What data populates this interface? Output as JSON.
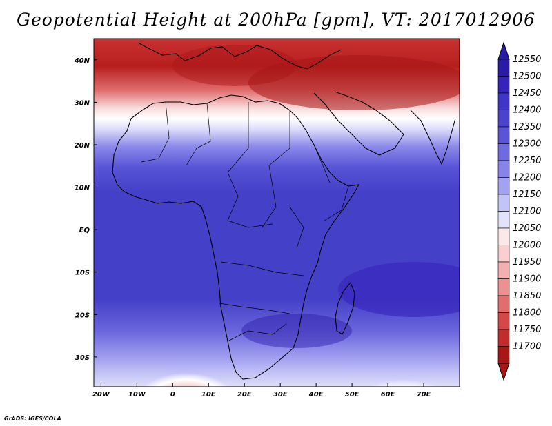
{
  "title": "Geopotential Height at 200hPa [gpm], VT: 2017012906",
  "credit": "GrADS: IGES/COLA",
  "map": {
    "lon_range": [
      -22,
      80
    ],
    "lat_range": [
      -37,
      45
    ],
    "lon_ticks": [
      {
        "value": -20,
        "label": "20W"
      },
      {
        "value": -10,
        "label": "10W"
      },
      {
        "value": 0,
        "label": "0"
      },
      {
        "value": 10,
        "label": "10E"
      },
      {
        "value": 20,
        "label": "20E"
      },
      {
        "value": 30,
        "label": "30E"
      },
      {
        "value": 40,
        "label": "40E"
      },
      {
        "value": 50,
        "label": "50E"
      },
      {
        "value": 60,
        "label": "60E"
      },
      {
        "value": 70,
        "label": "70E"
      }
    ],
    "lat_ticks": [
      {
        "value": 40,
        "label": "40N"
      },
      {
        "value": 30,
        "label": "30N"
      },
      {
        "value": 20,
        "label": "20N"
      },
      {
        "value": 10,
        "label": "10N"
      },
      {
        "value": 0,
        "label": "EQ"
      },
      {
        "value": -10,
        "label": "10S"
      },
      {
        "value": -20,
        "label": "20S"
      },
      {
        "value": -30,
        "label": "30S"
      }
    ]
  },
  "colorbar": {
    "levels": [
      "12550",
      "12500",
      "12450",
      "12400",
      "12350",
      "12300",
      "12250",
      "12200",
      "12150",
      "12100",
      "12050",
      "12000",
      "11950",
      "11900",
      "11850",
      "11800",
      "11750",
      "11700"
    ],
    "colors": [
      "#2a1aa8",
      "#3523bb",
      "#3f35c6",
      "#4a43cc",
      "#5a55d6",
      "#6e6ae0",
      "#8684ea",
      "#a3a2f1",
      "#c2c3f7",
      "#e2e3fb",
      "#fbe9e9",
      "#f9cfcf",
      "#f3b0b0",
      "#ec9090",
      "#e26d6d",
      "#d64848",
      "#c22c2c",
      "#a81616"
    ]
  }
}
